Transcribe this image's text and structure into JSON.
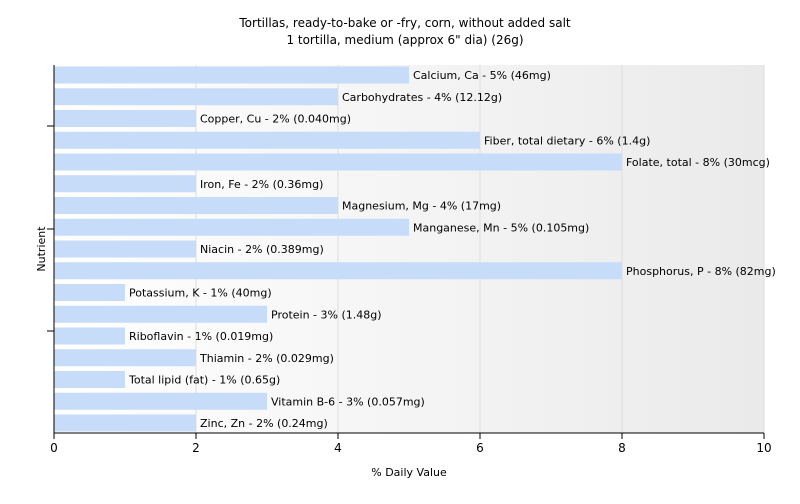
{
  "chart_data": {
    "type": "bar",
    "orientation": "horizontal",
    "title": "Tortillas, ready-to-bake or -fry, corn, without added salt",
    "subtitle": "1 tortilla, medium (approx 6\" dia) (26g)",
    "xlabel": "% Daily Value",
    "ylabel": "Nutrient",
    "xlim": [
      0,
      10
    ],
    "xticks": [
      "0",
      "2",
      "4",
      "6",
      "8",
      "10"
    ],
    "bar_color": "#c6dcf8",
    "categories": [
      "Calcium, Ca",
      "Carbohydrates",
      "Copper, Cu",
      "Fiber, total dietary",
      "Folate, total",
      "Iron, Fe",
      "Magnesium, Mg",
      "Manganese, Mn",
      "Niacin",
      "Phosphorus, P",
      "Potassium, K",
      "Protein",
      "Riboflavin",
      "Thiamin",
      "Total lipid (fat)",
      "Vitamin B-6",
      "Zinc, Zn"
    ],
    "values": [
      5,
      4,
      2,
      6,
      8,
      2,
      4,
      5,
      2,
      8,
      1,
      3,
      1,
      2,
      1,
      3,
      2
    ],
    "labels": [
      "Calcium, Ca - 5% (46mg)",
      "Carbohydrates - 4% (12.12g)",
      "Copper, Cu - 2% (0.040mg)",
      "Fiber, total dietary - 6% (1.4g)",
      "Folate, total - 8% (30mcg)",
      "Iron, Fe - 2% (0.36mg)",
      "Magnesium, Mg - 4% (17mg)",
      "Manganese, Mn - 5% (0.105mg)",
      "Niacin - 2% (0.389mg)",
      "Phosphorus, P - 8% (82mg)",
      "Potassium, K - 1% (40mg)",
      "Protein - 3% (1.48g)",
      "Riboflavin - 1% (0.019mg)",
      "Thiamin - 2% (0.029mg)",
      "Total lipid (fat) - 1% (0.65g)",
      "Vitamin B-6 - 3% (0.057mg)",
      "Zinc, Zn - 2% (0.24mg)"
    ],
    "grid": true
  }
}
